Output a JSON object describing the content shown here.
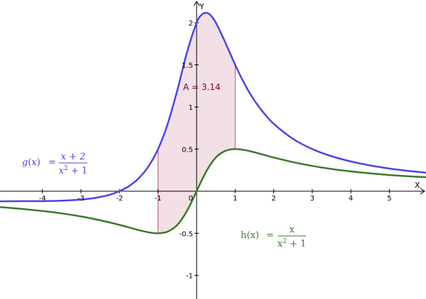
{
  "chart_data": {
    "type": "line",
    "axes": {
      "x_label": "X",
      "y_label": "Y",
      "xlim": [
        -5.1,
        5.95
      ],
      "ylim": [
        -1.28,
        2.27
      ],
      "x_ticks": [
        {
          "value": -4,
          "label": "-4"
        },
        {
          "value": -3,
          "label": "-3"
        },
        {
          "value": -2,
          "label": "-2"
        },
        {
          "value": -1,
          "label": "-1"
        },
        {
          "value": 1,
          "label": "1"
        },
        {
          "value": 2,
          "label": "2"
        },
        {
          "value": 3,
          "label": "3"
        },
        {
          "value": 4,
          "label": "4"
        },
        {
          "value": 5,
          "label": "5"
        }
      ],
      "y_ticks": [
        {
          "value": 2,
          "label": "2"
        },
        {
          "value": 1.5,
          "label": "1.5"
        },
        {
          "value": 1,
          "label": "1"
        },
        {
          "value": 0.5,
          "label": "0.5"
        },
        {
          "value": -0.5,
          "label": "-0.5"
        },
        {
          "value": -1,
          "label": "-1"
        }
      ],
      "origin_label": "0",
      "grid": false
    },
    "series": [
      {
        "name": "g",
        "expression": "(x+2)/(x^2+1)",
        "color": "#4b45e6",
        "points": [
          [
            -5.1,
            -0.12
          ],
          [
            -4.5,
            -0.118
          ],
          [
            -4,
            -0.118
          ],
          [
            -3.5,
            -0.113
          ],
          [
            -3,
            -0.1
          ],
          [
            -2.75,
            -0.088
          ],
          [
            -2.5,
            -0.069
          ],
          [
            -2.25,
            -0.042
          ],
          [
            -2,
            0.0
          ],
          [
            -1.75,
            0.061
          ],
          [
            -1.5,
            0.154
          ],
          [
            -1.25,
            0.293
          ],
          [
            -1,
            0.5
          ],
          [
            -0.75,
            0.8
          ],
          [
            -0.5,
            1.2
          ],
          [
            -0.25,
            1.647
          ],
          [
            0,
            2.0
          ],
          [
            0.125,
            2.092
          ],
          [
            0.236,
            2.118
          ],
          [
            0.35,
            2.096
          ],
          [
            0.5,
            2.0
          ],
          [
            0.75,
            1.76
          ],
          [
            1,
            1.5
          ],
          [
            1.25,
            1.268
          ],
          [
            1.5,
            1.077
          ],
          [
            1.75,
            0.925
          ],
          [
            2,
            0.8
          ],
          [
            2.5,
            0.621
          ],
          [
            3,
            0.5
          ],
          [
            3.5,
            0.415
          ],
          [
            4,
            0.353
          ],
          [
            4.5,
            0.306
          ],
          [
            5,
            0.269
          ],
          [
            5.5,
            0.24
          ],
          [
            5.95,
            0.22
          ]
        ]
      },
      {
        "name": "h",
        "expression": "x/(x^2+1)",
        "color": "#3a7a2a",
        "points": [
          [
            -5.1,
            -0.189
          ],
          [
            -4.5,
            -0.212
          ],
          [
            -4,
            -0.235
          ],
          [
            -3.5,
            -0.264
          ],
          [
            -3,
            -0.3
          ],
          [
            -2.5,
            -0.345
          ],
          [
            -2,
            -0.4
          ],
          [
            -1.75,
            -0.431
          ],
          [
            -1.5,
            -0.462
          ],
          [
            -1.25,
            -0.488
          ],
          [
            -1,
            -0.5
          ],
          [
            -0.75,
            -0.48
          ],
          [
            -0.5,
            -0.4
          ],
          [
            -0.25,
            -0.235
          ],
          [
            0,
            0.0
          ],
          [
            0.25,
            0.235
          ],
          [
            0.5,
            0.4
          ],
          [
            0.75,
            0.48
          ],
          [
            1,
            0.5
          ],
          [
            1.25,
            0.488
          ],
          [
            1.5,
            0.462
          ],
          [
            1.75,
            0.431
          ],
          [
            2,
            0.4
          ],
          [
            2.5,
            0.345
          ],
          [
            3,
            0.3
          ],
          [
            3.5,
            0.264
          ],
          [
            4,
            0.235
          ],
          [
            4.5,
            0.212
          ],
          [
            5,
            0.192
          ],
          [
            5.5,
            0.177
          ],
          [
            5.95,
            0.166
          ]
        ]
      }
    ],
    "shaded_area": {
      "between": [
        "g",
        "h"
      ],
      "x_from": -1,
      "x_to": 1,
      "fill": "#f2e0e6",
      "edge_color": "#c0506e",
      "label": "A = 3.14",
      "label_color": "#800020"
    }
  },
  "formulas": {
    "g": {
      "name": "g",
      "var": "x",
      "equals": "=",
      "numerator": "x + 2",
      "denominator_base": "x",
      "denominator_exp": "2",
      "denominator_tail": " + 1",
      "color": "#4b45e6"
    },
    "h": {
      "name": "h",
      "var": "x",
      "equals": "=",
      "numerator": "x",
      "denominator_base": "x",
      "denominator_exp": "2",
      "denominator_tail": " + 1",
      "color": "#3a7a2a"
    }
  }
}
